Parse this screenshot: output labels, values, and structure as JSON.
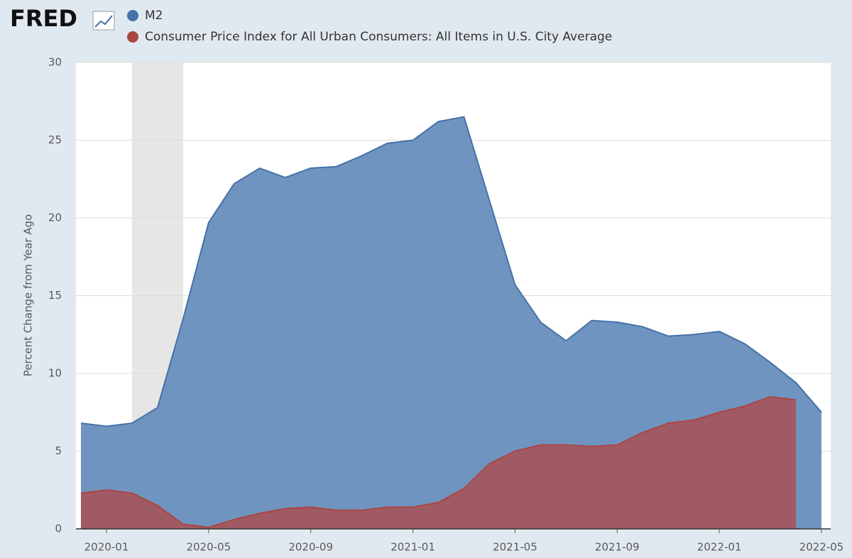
{
  "logo": "FRED",
  "chart_data": {
    "type": "area",
    "ylabel": "Percent Change from Year Ago",
    "x": [
      "2019-12",
      "2020-01",
      "2020-02",
      "2020-03",
      "2020-04",
      "2020-05",
      "2020-06",
      "2020-07",
      "2020-08",
      "2020-09",
      "2020-10",
      "2020-11",
      "2020-12",
      "2021-01",
      "2021-02",
      "2021-03",
      "2021-04",
      "2021-05",
      "2021-06",
      "2021-07",
      "2021-08",
      "2021-09",
      "2021-10",
      "2021-11",
      "2021-12",
      "2022-01",
      "2022-02",
      "2022-03",
      "2022-04",
      "2022-05"
    ],
    "series": [
      {
        "name": "M2",
        "color": "#4572a7",
        "fill": "#7094c0",
        "values": [
          6.8,
          6.6,
          6.8,
          7.8,
          13.5,
          19.7,
          22.2,
          23.2,
          22.6,
          23.2,
          23.3,
          24.0,
          24.8,
          25.0,
          26.2,
          26.5,
          21.1,
          15.7,
          13.3,
          12.1,
          13.4,
          13.3,
          13.0,
          12.4,
          12.5,
          12.7,
          11.9,
          10.7,
          9.4,
          7.5
        ]
      },
      {
        "name": "Consumer Price Index for All Urban Consumers: All Items in U.S. City Average",
        "color": "#aa4643",
        "fill": "#a05a63",
        "values": [
          2.3,
          2.5,
          2.3,
          1.5,
          0.3,
          0.1,
          0.6,
          1.0,
          1.3,
          1.4,
          1.2,
          1.2,
          1.4,
          1.4,
          1.7,
          2.6,
          4.2,
          5.0,
          5.4,
          5.4,
          5.3,
          5.4,
          6.2,
          6.8,
          7.0,
          7.5,
          7.9,
          8.5,
          8.3,
          null
        ]
      }
    ],
    "recession": [
      "2020-02",
      "2020-04"
    ],
    "xlim": [
      "2019-12",
      "2022-05"
    ],
    "xticks": [
      "2020-01",
      "2020-05",
      "2020-09",
      "2021-01",
      "2021-05",
      "2021-09",
      "2022-01",
      "2022-05"
    ],
    "ylim": [
      0,
      30
    ],
    "yticks": [
      0,
      5,
      10,
      15,
      20,
      25,
      30
    ],
    "grid": true
  }
}
